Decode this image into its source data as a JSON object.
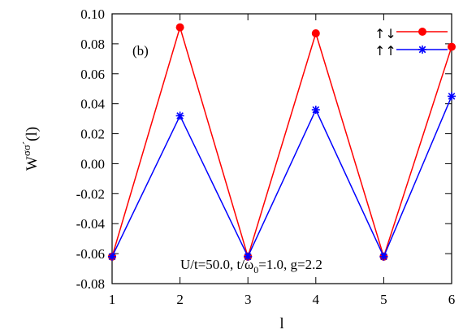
{
  "chart_data": {
    "type": "line",
    "panel_label": "(b)",
    "xlabel": "l",
    "ylabel": {
      "base": "W",
      "sup": "σσ´",
      "suffix": "(l)"
    },
    "annotation": "U/t=50.0, t/ω",
    "annotation_sub": "0",
    "annotation_tail": "=1.0, g=2.2",
    "xlim": [
      1,
      6
    ],
    "ylim": [
      -0.08,
      0.1
    ],
    "x": [
      1,
      2,
      3,
      4,
      5,
      6
    ],
    "xticks": [
      "1",
      "2",
      "3",
      "4",
      "5",
      "6"
    ],
    "yticks": [
      "0.10",
      "0.08",
      "0.06",
      "0.04",
      "0.02",
      "0.00",
      "-0.02",
      "-0.04",
      "-0.06",
      "-0.08"
    ],
    "ytick_values": [
      0.1,
      0.08,
      0.06,
      0.04,
      0.02,
      0.0,
      -0.02,
      -0.04,
      -0.06,
      -0.08
    ],
    "series": [
      {
        "name": "↑↓",
        "color": "#ff0000",
        "marker": "circle",
        "values": [
          -0.062,
          0.091,
          -0.062,
          0.087,
          -0.062,
          0.078
        ]
      },
      {
        "name": "↑↑",
        "color": "#0000ff",
        "marker": "star",
        "values": [
          -0.062,
          0.032,
          -0.062,
          0.036,
          -0.062,
          0.045
        ]
      }
    ],
    "grid": false,
    "legend_position": "top-right"
  }
}
